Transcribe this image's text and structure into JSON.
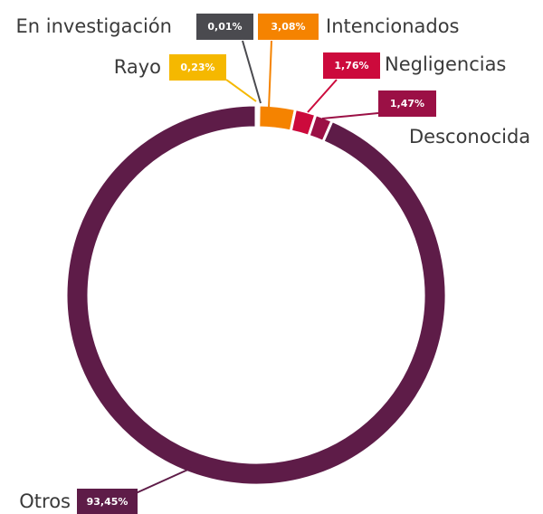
{
  "chart_data": {
    "type": "donut",
    "categories": [
      "En investigación",
      "Rayo",
      "Intencionados",
      "Negligencias",
      "Desconocida",
      "Otros"
    ],
    "values": [
      0.01,
      0.23,
      3.08,
      1.76,
      1.47,
      93.45
    ],
    "value_labels": [
      "0,01%",
      "0,23%",
      "3,08%",
      "1,76%",
      "1,47%",
      "93,45%"
    ],
    "colors": [
      "#4a4a4f",
      "#f5b800",
      "#f58300",
      "#cc0a3c",
      "#9b1045",
      "#5e1c48"
    ]
  }
}
